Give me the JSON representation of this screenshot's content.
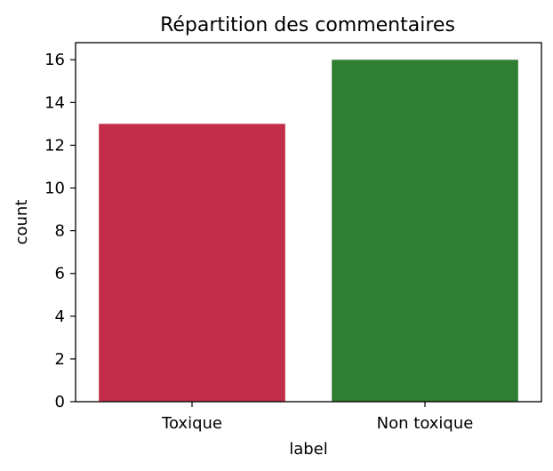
{
  "chart_data": {
    "type": "bar",
    "title": "Répartition des commentaires",
    "xlabel": "label",
    "ylabel": "count",
    "categories": [
      "Toxique",
      "Non toxique"
    ],
    "values": [
      13,
      16
    ],
    "colors": [
      "#c42d49",
      "#2f7e31"
    ],
    "ylim": [
      0,
      16.8
    ],
    "yticks": [
      0,
      2,
      4,
      6,
      8,
      10,
      12,
      14,
      16
    ],
    "grid": false,
    "legend": "none"
  }
}
